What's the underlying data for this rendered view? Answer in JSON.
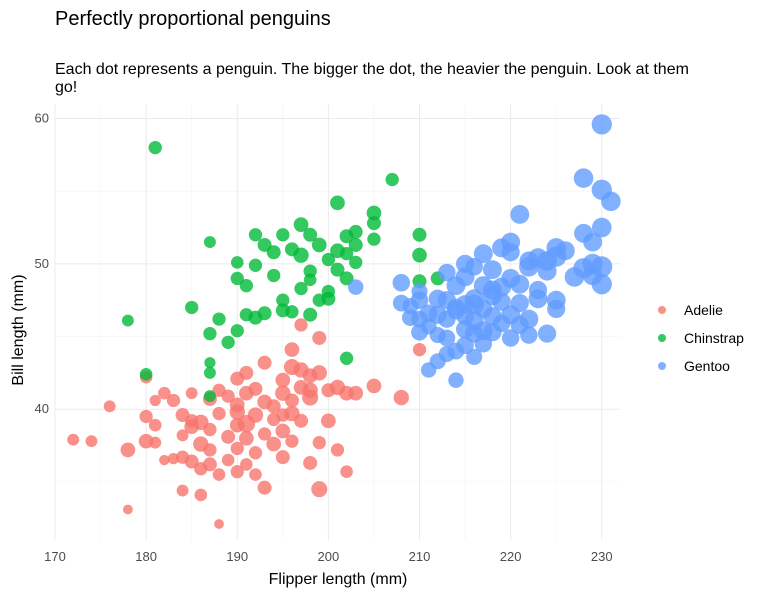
{
  "chart_data": {
    "type": "scatter",
    "title": "Perfectly proportional penguins",
    "subtitle": "Each dot represents a penguin. The bigger the dot, the heavier the penguin. Look at them go!",
    "xlabel": "Flipper length (mm)",
    "ylabel": "Bill length (mm)",
    "xlim": [
      170,
      232
    ],
    "ylim": [
      31,
      61
    ],
    "x_ticks": [
      170,
      180,
      190,
      200,
      210,
      220,
      230
    ],
    "y_ticks": [
      40,
      50,
      60
    ],
    "grid": true,
    "legend_position": "right",
    "size_encodes": "body mass",
    "series": [
      {
        "name": "Adelie",
        "color": "#F8766D",
        "points": [
          [
            172,
            37.9,
            0.35
          ],
          [
            174,
            37.8,
            0.35
          ],
          [
            176,
            40.2,
            0.35
          ],
          [
            178,
            33.1,
            0.2
          ],
          [
            178,
            37.2,
            0.55
          ],
          [
            180,
            42.2,
            0.4
          ],
          [
            180,
            39.5,
            0.45
          ],
          [
            180,
            37.8,
            0.55
          ],
          [
            181,
            37.7,
            0.35
          ],
          [
            181,
            38.9,
            0.4
          ],
          [
            181,
            40.6,
            0.3
          ],
          [
            182,
            41.1,
            0.4
          ],
          [
            182,
            36.5,
            0.25
          ],
          [
            183,
            36.6,
            0.3
          ],
          [
            183,
            40.6,
            0.45
          ],
          [
            184,
            38.2,
            0.35
          ],
          [
            184,
            39.6,
            0.5
          ],
          [
            184,
            36.7,
            0.45
          ],
          [
            184,
            34.4,
            0.35
          ],
          [
            185,
            39.2,
            0.45
          ],
          [
            185,
            38.8,
            0.55
          ],
          [
            185,
            36.4,
            0.5
          ],
          [
            185,
            41.1,
            0.35
          ],
          [
            186,
            35.9,
            0.45
          ],
          [
            186,
            39.1,
            0.6
          ],
          [
            186,
            37.6,
            0.6
          ],
          [
            186,
            34.1,
            0.4
          ],
          [
            187,
            40.7,
            0.5
          ],
          [
            187,
            38.6,
            0.45
          ],
          [
            187,
            36.2,
            0.5
          ],
          [
            187,
            37.2,
            0.45
          ],
          [
            188,
            39.7,
            0.45
          ],
          [
            188,
            41.3,
            0.45
          ],
          [
            188,
            35.5,
            0.4
          ],
          [
            188,
            32.1,
            0.2
          ],
          [
            189,
            40.9,
            0.45
          ],
          [
            189,
            38.1,
            0.5
          ],
          [
            189,
            36.5,
            0.4
          ],
          [
            190,
            39.8,
            0.6
          ],
          [
            190,
            38.9,
            0.55
          ],
          [
            190,
            42.1,
            0.5
          ],
          [
            190,
            35.7,
            0.45
          ],
          [
            190,
            40.3,
            0.55
          ],
          [
            190,
            37.3,
            0.45
          ],
          [
            191,
            41.1,
            0.55
          ],
          [
            191,
            39.0,
            0.75
          ],
          [
            191,
            38.0,
            0.55
          ],
          [
            191,
            36.2,
            0.4
          ],
          [
            191,
            42.5,
            0.5
          ],
          [
            192,
            39.6,
            0.6
          ],
          [
            192,
            41.4,
            0.5
          ],
          [
            192,
            35.5,
            0.4
          ],
          [
            192,
            37.0,
            0.45
          ],
          [
            193,
            40.5,
            0.55
          ],
          [
            193,
            43.2,
            0.5
          ],
          [
            193,
            38.3,
            0.45
          ],
          [
            193,
            34.6,
            0.5
          ],
          [
            194,
            40.2,
            0.5
          ],
          [
            194,
            39.3,
            0.45
          ],
          [
            194,
            37.6,
            0.55
          ],
          [
            195,
            42.0,
            0.55
          ],
          [
            195,
            41.1,
            0.6
          ],
          [
            195,
            36.7,
            0.5
          ],
          [
            195,
            38.5,
            0.55
          ],
          [
            195,
            39.6,
            0.45
          ],
          [
            196,
            42.9,
            0.65
          ],
          [
            196,
            44.1,
            0.55
          ],
          [
            196,
            39.7,
            0.6
          ],
          [
            196,
            40.6,
            0.5
          ],
          [
            196,
            37.8,
            0.45
          ],
          [
            197,
            42.7,
            0.6
          ],
          [
            197,
            41.5,
            0.55
          ],
          [
            197,
            39.2,
            0.5
          ],
          [
            197,
            45.8,
            0.45
          ],
          [
            198,
            42.3,
            0.55
          ],
          [
            198,
            41.3,
            0.6
          ],
          [
            198,
            36.3,
            0.5
          ],
          [
            198,
            40.8,
            0.65
          ],
          [
            199,
            42.5,
            0.6
          ],
          [
            199,
            37.7,
            0.45
          ],
          [
            199,
            44.9,
            0.5
          ],
          [
            199,
            34.5,
            0.65
          ],
          [
            200,
            41.3,
            0.5
          ],
          [
            200,
            39.2,
            0.55
          ],
          [
            201,
            41.5,
            0.6
          ],
          [
            201,
            37.2,
            0.45
          ],
          [
            202,
            41.1,
            0.55
          ],
          [
            202,
            35.7,
            0.4
          ],
          [
            203,
            41.1,
            0.55
          ],
          [
            205,
            41.6,
            0.55
          ],
          [
            208,
            40.8,
            0.6
          ],
          [
            210,
            44.1,
            0.45
          ]
        ]
      },
      {
        "name": "Chinstrap",
        "color": "#00BA38",
        "points": [
          [
            178,
            46.1,
            0.35
          ],
          [
            180,
            42.4,
            0.4
          ],
          [
            181,
            58.0,
            0.45
          ],
          [
            185,
            47.0,
            0.45
          ],
          [
            187,
            40.9,
            0.35
          ],
          [
            187,
            42.5,
            0.35
          ],
          [
            187,
            43.2,
            0.3
          ],
          [
            187,
            45.2,
            0.45
          ],
          [
            187,
            51.5,
            0.35
          ],
          [
            188,
            46.2,
            0.45
          ],
          [
            189,
            44.6,
            0.45
          ],
          [
            190,
            49.0,
            0.45
          ],
          [
            190,
            50.1,
            0.4
          ],
          [
            190,
            45.4,
            0.45
          ],
          [
            191,
            46.5,
            0.45
          ],
          [
            191,
            48.5,
            0.45
          ],
          [
            192,
            46.3,
            0.5
          ],
          [
            192,
            49.9,
            0.45
          ],
          [
            192,
            52.0,
            0.45
          ],
          [
            193,
            51.3,
            0.5
          ],
          [
            193,
            46.6,
            0.5
          ],
          [
            194,
            49.2,
            0.45
          ],
          [
            194,
            50.8,
            0.5
          ],
          [
            195,
            47.5,
            0.45
          ],
          [
            195,
            46.8,
            0.5
          ],
          [
            195,
            52.0,
            0.45
          ],
          [
            196,
            46.7,
            0.45
          ],
          [
            196,
            51.0,
            0.5
          ],
          [
            197,
            50.6,
            0.6
          ],
          [
            197,
            52.7,
            0.55
          ],
          [
            197,
            48.3,
            0.45
          ],
          [
            198,
            52.0,
            0.5
          ],
          [
            198,
            49.5,
            0.45
          ],
          [
            198,
            48.9,
            0.4
          ],
          [
            198,
            46.5,
            0.5
          ],
          [
            199,
            51.3,
            0.55
          ],
          [
            199,
            47.5,
            0.45
          ],
          [
            200,
            48.1,
            0.45
          ],
          [
            200,
            47.6,
            0.5
          ],
          [
            200,
            50.3,
            0.45
          ],
          [
            201,
            49.6,
            0.5
          ],
          [
            201,
            50.9,
            0.55
          ],
          [
            202,
            51.9,
            0.5
          ],
          [
            202,
            43.5,
            0.45
          ],
          [
            202,
            49.0,
            0.5
          ],
          [
            202,
            50.7,
            0.45
          ],
          [
            203,
            50.1,
            0.45
          ],
          [
            203,
            52.2,
            0.5
          ],
          [
            203,
            51.3,
            0.5
          ],
          [
            205,
            53.5,
            0.55
          ],
          [
            205,
            52.8,
            0.5
          ],
          [
            205,
            51.7,
            0.45
          ],
          [
            207,
            55.8,
            0.45
          ],
          [
            210,
            50.6,
            0.55
          ],
          [
            210,
            52.0,
            0.5
          ],
          [
            210,
            48.8,
            0.5
          ],
          [
            212,
            49.0,
            0.5
          ],
          [
            201,
            54.2,
            0.55
          ]
        ]
      },
      {
        "name": "Gentoo",
        "color": "#619CFF",
        "points": [
          [
            203,
            48.4,
            0.6
          ],
          [
            208,
            48.7,
            0.75
          ],
          [
            208,
            47.3,
            0.7
          ],
          [
            209,
            47.1,
            0.65
          ],
          [
            209,
            46.3,
            0.7
          ],
          [
            210,
            46.2,
            0.7
          ],
          [
            210,
            48.1,
            0.65
          ],
          [
            210,
            45.3,
            0.7
          ],
          [
            210,
            47.5,
            0.75
          ],
          [
            211,
            45.7,
            0.65
          ],
          [
            211,
            42.7,
            0.6
          ],
          [
            211,
            46.6,
            0.75
          ],
          [
            212,
            46.5,
            0.8
          ],
          [
            212,
            43.3,
            0.65
          ],
          [
            212,
            45.1,
            0.65
          ],
          [
            213,
            44.9,
            0.7
          ],
          [
            213,
            49.4,
            0.75
          ],
          [
            213,
            46.2,
            0.75
          ],
          [
            213,
            47.5,
            0.8
          ],
          [
            213,
            43.8,
            0.65
          ],
          [
            214,
            46.8,
            0.8
          ],
          [
            214,
            44.0,
            0.7
          ],
          [
            214,
            47.0,
            0.75
          ],
          [
            214,
            42.0,
            0.6
          ],
          [
            215,
            45.5,
            0.8
          ],
          [
            215,
            47.2,
            0.85
          ],
          [
            215,
            46.4,
            0.75
          ],
          [
            215,
            49.1,
            0.85
          ],
          [
            215,
            44.4,
            0.75
          ],
          [
            215,
            50.0,
            0.8
          ],
          [
            216,
            47.6,
            0.85
          ],
          [
            216,
            45.2,
            0.8
          ],
          [
            216,
            46.1,
            0.85
          ],
          [
            216,
            49.8,
            0.75
          ],
          [
            216,
            43.6,
            0.65
          ],
          [
            217,
            45.4,
            0.85
          ],
          [
            217,
            46.9,
            0.8
          ],
          [
            217,
            48.5,
            0.85
          ],
          [
            217,
            50.7,
            0.85
          ],
          [
            217,
            44.5,
            0.75
          ],
          [
            218,
            46.4,
            0.8
          ],
          [
            218,
            47.8,
            0.85
          ],
          [
            218,
            45.3,
            0.8
          ],
          [
            218,
            49.6,
            0.85
          ],
          [
            219,
            45.9,
            0.75
          ],
          [
            219,
            48.4,
            0.85
          ],
          [
            219,
            47.4,
            0.8
          ],
          [
            219,
            51.1,
            0.85
          ],
          [
            220,
            46.5,
            0.85
          ],
          [
            220,
            49.0,
            0.85
          ],
          [
            220,
            50.8,
            0.8
          ],
          [
            220,
            44.9,
            0.75
          ],
          [
            221,
            45.8,
            0.8
          ],
          [
            221,
            48.6,
            0.85
          ],
          [
            221,
            53.4,
            0.85
          ],
          [
            221,
            47.3,
            0.8
          ],
          [
            222,
            46.2,
            0.85
          ],
          [
            222,
            49.8,
            0.9
          ],
          [
            222,
            50.2,
            0.85
          ],
          [
            222,
            45.1,
            0.75
          ],
          [
            223,
            47.6,
            0.85
          ],
          [
            223,
            50.4,
            0.9
          ],
          [
            223,
            48.2,
            0.8
          ],
          [
            224,
            49.5,
            0.85
          ],
          [
            224,
            50.2,
            0.9
          ],
          [
            224,
            45.2,
            0.8
          ],
          [
            225,
            46.9,
            0.8
          ],
          [
            225,
            50.5,
            0.95
          ],
          [
            225,
            51.1,
            0.9
          ],
          [
            225,
            47.5,
            0.85
          ],
          [
            226,
            50.9,
            0.85
          ],
          [
            227,
            49.1,
            0.9
          ],
          [
            228,
            49.7,
            0.95
          ],
          [
            228,
            52.1,
            0.85
          ],
          [
            228,
            55.9,
            0.9
          ],
          [
            229,
            50.0,
            0.95
          ],
          [
            229,
            51.5,
            0.85
          ],
          [
            229,
            49.2,
            0.9
          ],
          [
            230,
            49.8,
            1.0
          ],
          [
            230,
            52.5,
            0.9
          ],
          [
            230,
            55.1,
            0.95
          ],
          [
            230,
            59.6,
            0.95
          ],
          [
            231,
            54.3,
            0.9
          ],
          [
            230,
            48.6,
            0.95
          ],
          [
            212,
            47.6,
            0.8
          ],
          [
            214,
            48.5,
            0.85
          ],
          [
            216,
            47.2,
            0.9
          ],
          [
            218,
            48.2,
            0.85
          ],
          [
            220,
            51.5,
            0.85
          ]
        ]
      }
    ]
  }
}
